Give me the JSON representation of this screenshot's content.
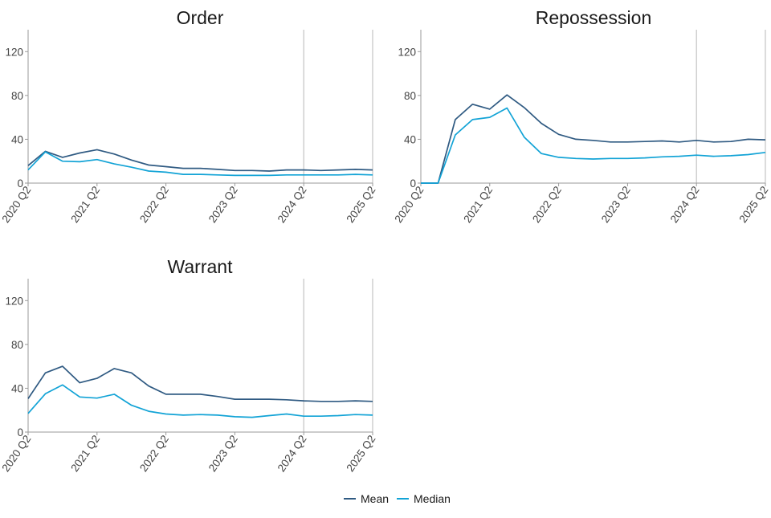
{
  "chart_data": [
    {
      "type": "line",
      "title": "Order",
      "xlabel": "",
      "ylabel": "",
      "ylim": [
        0,
        140
      ],
      "yticks": [
        0,
        40,
        80,
        120
      ],
      "xticks": [
        "2020 Q2",
        "2021 Q2",
        "2022 Q2",
        "2023 Q2",
        "2024 Q2",
        "2025 Q2"
      ],
      "x": [
        "2020 Q2",
        "2020 Q3",
        "2020 Q4",
        "2021 Q1",
        "2021 Q2",
        "2021 Q3",
        "2021 Q4",
        "2022 Q1",
        "2022 Q2",
        "2022 Q3",
        "2022 Q4",
        "2023 Q1",
        "2023 Q2",
        "2023 Q3",
        "2023 Q4",
        "2024 Q1",
        "2024 Q2",
        "2024 Q3",
        "2024 Q4",
        "2025 Q1",
        "2025 Q2"
      ],
      "reference_x": "2024 Q2",
      "series": [
        {
          "name": "Mean",
          "color": "#2f5a82",
          "values": [
            16,
            29,
            23.5,
            27.5,
            30.5,
            26.5,
            21,
            16.5,
            15,
            13.5,
            13.5,
            12.5,
            11.5,
            11.5,
            11,
            12,
            12,
            11.5,
            12,
            12.5,
            12
          ]
        },
        {
          "name": "Median",
          "color": "#12a3d6",
          "values": [
            12,
            28.5,
            20,
            19.5,
            21.5,
            17.5,
            14.5,
            11,
            10,
            8,
            8,
            7.5,
            7,
            7,
            7,
            7.5,
            7.5,
            7.5,
            7.5,
            8,
            7.5
          ]
        }
      ]
    },
    {
      "type": "line",
      "title": "Repossession",
      "xlabel": "",
      "ylabel": "",
      "ylim": [
        0,
        140
      ],
      "yticks": [
        0,
        40,
        80,
        120
      ],
      "xticks": [
        "2020 Q2",
        "2021 Q2",
        "2022 Q2",
        "2023 Q2",
        "2024 Q2",
        "2025 Q2"
      ],
      "x": [
        "2020 Q2",
        "2020 Q3",
        "2020 Q4",
        "2021 Q1",
        "2021 Q2",
        "2021 Q3",
        "2021 Q4",
        "2022 Q1",
        "2022 Q2",
        "2022 Q3",
        "2022 Q4",
        "2023 Q1",
        "2023 Q2",
        "2023 Q3",
        "2023 Q4",
        "2024 Q1",
        "2024 Q2",
        "2024 Q3",
        "2024 Q4",
        "2025 Q1",
        "2025 Q2"
      ],
      "reference_x": "2024 Q2",
      "series": [
        {
          "name": "Mean",
          "color": "#2f5a82",
          "values": [
            0,
            0,
            58,
            72,
            67.5,
            80.5,
            69,
            54.5,
            44.5,
            40,
            39,
            37.5,
            37.5,
            38,
            38.5,
            37.5,
            39,
            37.5,
            38,
            40,
            39.5
          ]
        },
        {
          "name": "Median",
          "color": "#12a3d6",
          "values": [
            0,
            0,
            44,
            58,
            60,
            68.5,
            42,
            27,
            23.5,
            22.5,
            22,
            22.5,
            22.5,
            23,
            24,
            24.5,
            25.5,
            24.5,
            25,
            26,
            28
          ]
        }
      ]
    },
    {
      "type": "line",
      "title": "Warrant",
      "xlabel": "",
      "ylabel": "",
      "ylim": [
        0,
        140
      ],
      "yticks": [
        0,
        40,
        80,
        120
      ],
      "xticks": [
        "2020 Q2",
        "2021 Q2",
        "2022 Q2",
        "2023 Q2",
        "2024 Q2",
        "2025 Q2"
      ],
      "x": [
        "2020 Q2",
        "2020 Q3",
        "2020 Q4",
        "2021 Q1",
        "2021 Q2",
        "2021 Q3",
        "2021 Q4",
        "2022 Q1",
        "2022 Q2",
        "2022 Q3",
        "2022 Q4",
        "2023 Q1",
        "2023 Q2",
        "2023 Q3",
        "2023 Q4",
        "2024 Q1",
        "2024 Q2",
        "2024 Q3",
        "2024 Q4",
        "2025 Q1",
        "2025 Q2"
      ],
      "reference_x": "2024 Q2",
      "series": [
        {
          "name": "Mean",
          "color": "#2f5a82",
          "values": [
            30.5,
            54,
            60,
            45,
            49,
            58,
            54,
            42,
            34.5,
            34.5,
            34.5,
            32.5,
            30,
            30,
            30,
            29.5,
            28.5,
            28,
            28,
            28.5,
            28
          ]
        },
        {
          "name": "Median",
          "color": "#12a3d6",
          "values": [
            17,
            35,
            43,
            32,
            31,
            34.5,
            24.5,
            19,
            16.5,
            15.5,
            16,
            15.5,
            14,
            13.5,
            15,
            16.5,
            14.5,
            14.5,
            15,
            16,
            15.5
          ]
        }
      ]
    }
  ],
  "legend": {
    "position": "bottom-center",
    "items": [
      {
        "label": "Mean",
        "color": "#2f5a82"
      },
      {
        "label": "Median",
        "color": "#12a3d6"
      }
    ]
  }
}
